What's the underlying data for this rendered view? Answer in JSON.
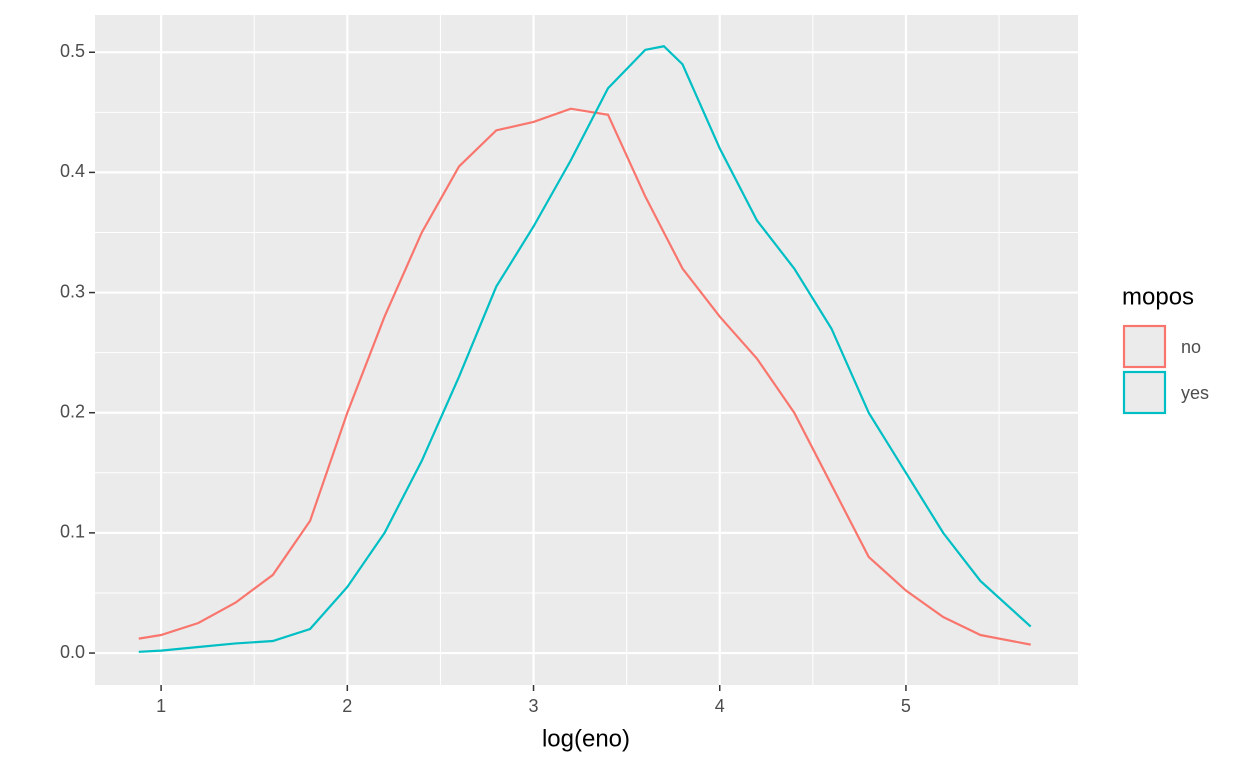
{
  "chart_data": {
    "type": "line",
    "x_label": "log(eno)",
    "legend_title": "mopos",
    "legend_position": "right",
    "grid": true,
    "xlim": [
      0.645,
      5.924
    ],
    "ylim": [
      -0.0266,
      0.531
    ],
    "xticks": [
      1,
      2,
      3,
      4,
      5
    ],
    "yticks": [
      {
        "value": 0,
        "label": "0.0"
      },
      0.1,
      0.2,
      0.3,
      0.4,
      0.5
    ],
    "xticks_minor": [
      1.5,
      2.5,
      3.5,
      4.5,
      5.5
    ],
    "yticks_minor": [
      0.05,
      0.15,
      0.25,
      0.35,
      0.45
    ],
    "x": [
      0.88,
      1.0,
      1.2,
      1.4,
      1.6,
      1.8,
      2.0,
      2.2,
      2.4,
      2.6,
      2.8,
      3.0,
      3.2,
      3.4,
      3.6,
      3.7,
      3.8,
      4.0,
      4.2,
      4.4,
      4.6,
      4.8,
      5.0,
      5.2,
      5.4,
      5.67
    ],
    "series": [
      {
        "name": "no",
        "color": "#f8766d",
        "values": [
          0.012,
          0.015,
          0.025,
          0.042,
          0.065,
          0.11,
          0.2,
          0.28,
          0.35,
          0.405,
          0.435,
          0.442,
          0.453,
          0.448,
          0.38,
          0.35,
          0.32,
          0.28,
          0.245,
          0.2,
          0.14,
          0.08,
          0.052,
          0.03,
          0.015,
          0.007
        ]
      },
      {
        "name": "yes",
        "color": "#00bfc4",
        "values": [
          0.001,
          0.002,
          0.005,
          0.008,
          0.01,
          0.02,
          0.055,
          0.1,
          0.16,
          0.23,
          0.305,
          0.355,
          0.41,
          0.47,
          0.502,
          0.505,
          0.49,
          0.42,
          0.36,
          0.32,
          0.27,
          0.2,
          0.15,
          0.1,
          0.06,
          0.022
        ]
      }
    ]
  }
}
